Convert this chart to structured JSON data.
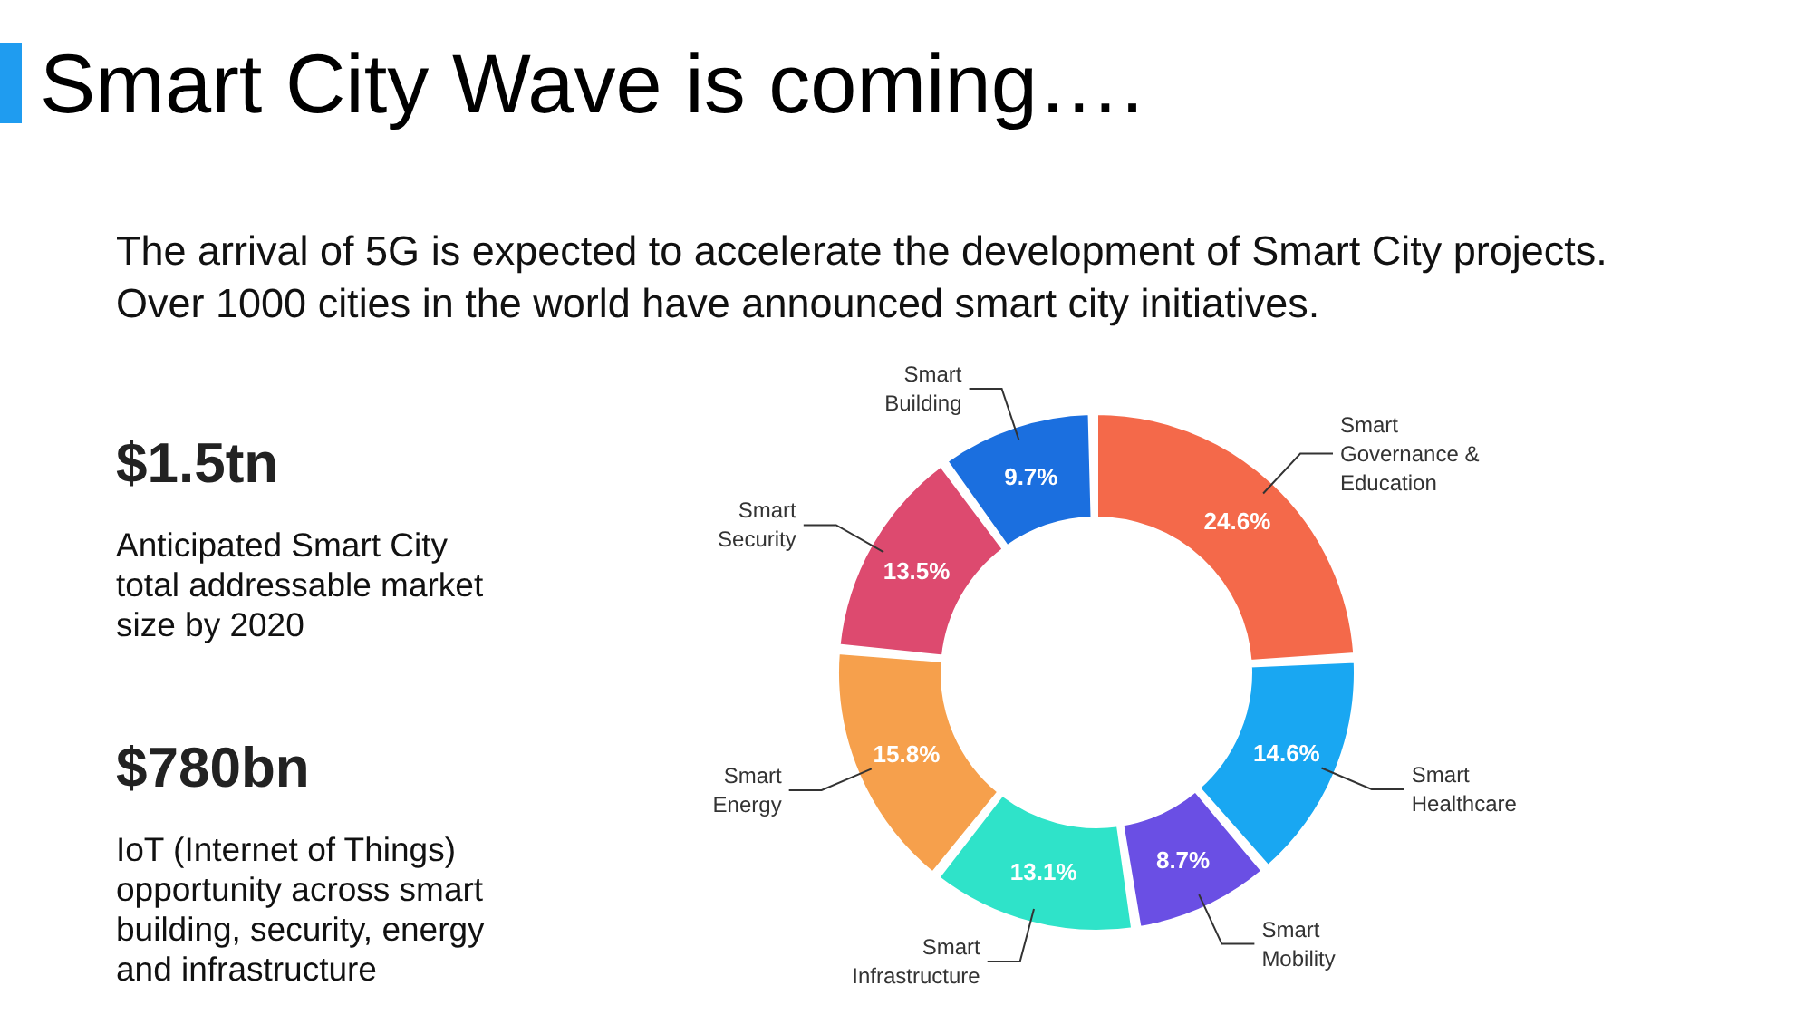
{
  "chart_data": {
    "type": "donut",
    "title": "Smart City Wave is coming….",
    "subtitle": "The arrival of 5G is expected to accelerate the development of Smart City projects. Over 1000 cities in the world have announced smart city initiatives.",
    "categories": [
      "Smart Governance & Education",
      "Smart Healthcare",
      "Smart Mobility",
      "Smart Infrastructure",
      "Smart Energy",
      "Smart Security",
      "Smart Building"
    ],
    "values": [
      24.6,
      14.6,
      8.7,
      13.1,
      15.8,
      13.5,
      9.7
    ],
    "colors": [
      "#f4694a",
      "#19a7f2",
      "#6a4fe4",
      "#2fe3c9",
      "#f6a04c",
      "#dd4a6f",
      "#1b6fdf"
    ],
    "value_labels": [
      "24.6%",
      "14.6%",
      "8.7%",
      "13.1%",
      "15.8%",
      "13.5%",
      "9.7%"
    ],
    "legend": false,
    "annotations": [
      "$1.5tn",
      "Anticipated Smart City total addressable market size by 2020",
      "$780bn",
      "IoT (Internet of Things) opportunity across smart building, security, energy and infrastructure"
    ]
  }
}
